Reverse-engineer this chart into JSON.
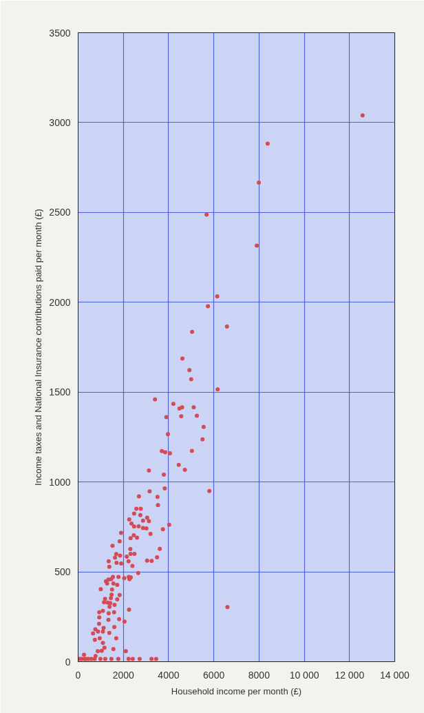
{
  "chart_data": {
    "type": "scatter",
    "xlabel": "Household income per month (£)",
    "ylabel": "Income taxes and National Insurance contributions paid per month (£)",
    "xlim": [
      0,
      14000
    ],
    "ylim": [
      0,
      3500
    ],
    "xticks": [
      0,
      2000,
      4000,
      6000,
      8000,
      {
        "value": 10000,
        "label": "10 000"
      },
      {
        "value": 12000,
        "label": "12 000"
      },
      {
        "value": 14000,
        "label": "14 000"
      }
    ],
    "yticks": [
      0,
      500,
      1000,
      1500,
      2000,
      2500,
      3000,
      3500
    ],
    "grid": true,
    "marker": "circle",
    "series": [
      {
        "color": "#d24b55",
        "x": [
          12580,
          8380,
          7990,
          5680,
          7900,
          6150,
          5740,
          6580,
          5040,
          4610,
          4920,
          5000,
          6170,
          4210,
          4480,
          4600,
          5110,
          3900,
          4560,
          5250,
          5550,
          3970,
          5500,
          3700,
          3850,
          4060,
          5030,
          4450,
          4720,
          3790,
          3830,
          5800,
          6600,
          3400,
          3130,
          3160,
          2690,
          3510,
          3530,
          2575,
          2770,
          2475,
          2750,
          2260,
          2870,
          3050,
          3130,
          2360,
          2475,
          2675,
          2870,
          3020,
          4025,
          3750,
          3200,
          1900,
          2460,
          2605,
          2320,
          1835,
          1520,
          3610,
          2310,
          1685,
          1630,
          1855,
          2150,
          2320,
          2490,
          3490,
          1350,
          1700,
          1905,
          2230,
          3050,
          3250,
          1380,
          2400,
          2655,
          2040,
          2270,
          2240,
          2330,
          1230,
          1340,
          1460,
          1540,
          1785,
          1280,
          1560,
          1730,
          1000,
          1500,
          1480,
          1835,
          1190,
          1450,
          1730,
          1145,
          1310,
          1420,
          1610,
          1390,
          2250,
          935,
          1095,
          1590,
          935,
          1350,
          1340,
          1815,
          925,
          2050,
          760,
          880,
          1125,
          1095,
          1600,
          660,
          1380,
          955,
          740,
          1685,
          1095,
          1165,
          1560,
          870,
          1045,
          2110,
          770,
          260,
          50,
          150,
          285,
          335,
          445,
          580,
          730,
          985,
          1200,
          1470,
          1775,
          2230,
          2415,
          2720,
          3245,
          3450
        ],
        "values": [
          3040,
          2883,
          2666,
          2488,
          2315,
          2033,
          1978,
          1865,
          1835,
          1687,
          1623,
          1572,
          1515,
          1435,
          1409,
          1416,
          1416,
          1361,
          1366,
          1369,
          1306,
          1266,
          1237,
          1172,
          1165,
          1160,
          1173,
          1095,
          1068,
          1041,
          964,
          950,
          304,
          1460,
          1064,
          948,
          920,
          917,
          871,
          851,
          851,
          824,
          816,
          792,
          785,
          801,
          782,
          769,
          752,
          753,
          744,
          742,
          762,
          737,
          711,
          717,
          703,
          690,
          687,
          670,
          645,
          628,
          627,
          599,
          579,
          590,
          585,
          600,
          600,
          581,
          559,
          550,
          546,
          559,
          563,
          561,
          528,
          533,
          494,
          465,
          459,
          472,
          469,
          448,
          457,
          459,
          472,
          472,
          435,
          435,
          427,
          403,
          402,
          373,
          371,
          350,
          354,
          347,
          331,
          329,
          326,
          316,
          306,
          289,
          275,
          283,
          275,
          246,
          269,
          233,
          237,
          211,
          223,
          180,
          168,
          188,
          168,
          193,
          157,
          160,
          130,
          122,
          130,
          104,
          78,
          70,
          58,
          60,
          58,
          32,
          38,
          15,
          15,
          15,
          15,
          15,
          15,
          15,
          15,
          15,
          15,
          15,
          15,
          15,
          15,
          15,
          15
        ]
      }
    ]
  }
}
